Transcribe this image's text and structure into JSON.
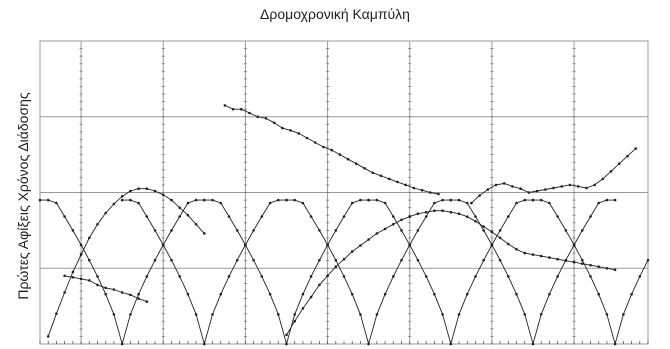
{
  "chart_data": {
    "type": "line",
    "title": "Δρομοχρονική Καμπύλη",
    "xlabel": "",
    "ylabel": "Πρώτες Αφίξεις Χρόνος Διάδοσης",
    "xlim": [
      0,
      7.4
    ],
    "ylim": [
      0,
      4
    ],
    "grid": true,
    "series": [
      {
        "x": [
          0.1,
          0.2,
          0.3,
          0.4,
          0.5,
          0.6,
          0.7,
          0.8,
          0.9,
          1.0,
          1.1,
          1.2,
          1.3,
          1.4,
          1.5,
          1.6,
          1.7,
          1.8,
          1.9,
          2.0
        ],
        "values": [
          0.1,
          0.4,
          0.68,
          0.95,
          1.18,
          1.4,
          1.58,
          1.73,
          1.85,
          1.95,
          2.02,
          2.05,
          2.05,
          2.02,
          1.97,
          1.9,
          1.8,
          1.7,
          1.58,
          1.46
        ]
      },
      {
        "x": [
          2.25,
          2.35,
          2.45,
          2.55,
          2.65,
          2.75,
          2.85,
          2.95,
          3.05,
          3.15,
          3.25,
          3.35,
          3.45,
          3.55,
          3.65,
          3.75,
          3.85,
          3.95,
          4.05,
          4.15,
          4.25,
          4.35,
          4.45,
          4.55,
          4.65,
          4.75,
          4.85
        ],
        "values": [
          3.15,
          3.1,
          3.1,
          3.05,
          3.0,
          2.98,
          2.92,
          2.85,
          2.82,
          2.78,
          2.72,
          2.66,
          2.6,
          2.56,
          2.5,
          2.44,
          2.38,
          2.32,
          2.26,
          2.22,
          2.18,
          2.14,
          2.1,
          2.06,
          2.03,
          2.0,
          1.98
        ]
      },
      {
        "x": [
          0.3,
          0.4,
          0.5,
          0.6,
          0.7,
          0.8,
          0.9,
          1.0,
          1.1,
          1.2,
          1.3
        ],
        "values": [
          0.9,
          0.88,
          0.86,
          0.84,
          0.78,
          0.74,
          0.72,
          0.68,
          0.65,
          0.6,
          0.56
        ]
      },
      {
        "x": [
          3.0,
          3.1,
          3.2,
          3.3,
          3.4,
          3.5,
          3.6,
          3.7,
          3.8,
          3.9,
          4.0,
          4.1,
          4.2,
          4.3,
          4.4,
          4.5,
          4.6,
          4.7,
          4.8,
          4.9,
          5.0,
          5.1,
          5.2,
          5.3,
          5.4,
          5.5,
          5.6,
          5.7,
          5.8,
          5.9,
          6.0,
          6.1,
          6.2,
          6.3,
          6.4,
          6.5,
          6.6,
          6.7,
          6.8,
          6.9,
          7.0
        ],
        "values": [
          0.12,
          0.3,
          0.47,
          0.62,
          0.78,
          0.9,
          1.02,
          1.12,
          1.22,
          1.3,
          1.38,
          1.46,
          1.52,
          1.58,
          1.64,
          1.68,
          1.72,
          1.74,
          1.76,
          1.76,
          1.74,
          1.72,
          1.68,
          1.62,
          1.55,
          1.48,
          1.4,
          1.32,
          1.25,
          1.2,
          1.18,
          1.16,
          1.14,
          1.12,
          1.1,
          1.08,
          1.06,
          1.04,
          1.02,
          1.0,
          0.98
        ]
      },
      {
        "x": [
          5.25,
          5.35,
          5.45,
          5.55,
          5.65,
          5.75,
          5.85,
          5.95,
          6.05,
          6.15,
          6.25,
          6.35,
          6.45,
          6.55,
          6.65,
          6.75,
          6.85,
          6.95,
          7.05,
          7.15,
          7.25
        ],
        "values": [
          1.86,
          1.96,
          2.04,
          2.1,
          2.12,
          2.08,
          2.05,
          2.0,
          2.02,
          2.04,
          2.06,
          2.08,
          2.1,
          2.08,
          2.06,
          2.1,
          2.18,
          2.28,
          2.38,
          2.48,
          2.58
        ]
      }
    ],
    "vertex_x": [
      1.0,
      2.0,
      3.0,
      4.0,
      5.0,
      6.0,
      7.0
    ]
  }
}
